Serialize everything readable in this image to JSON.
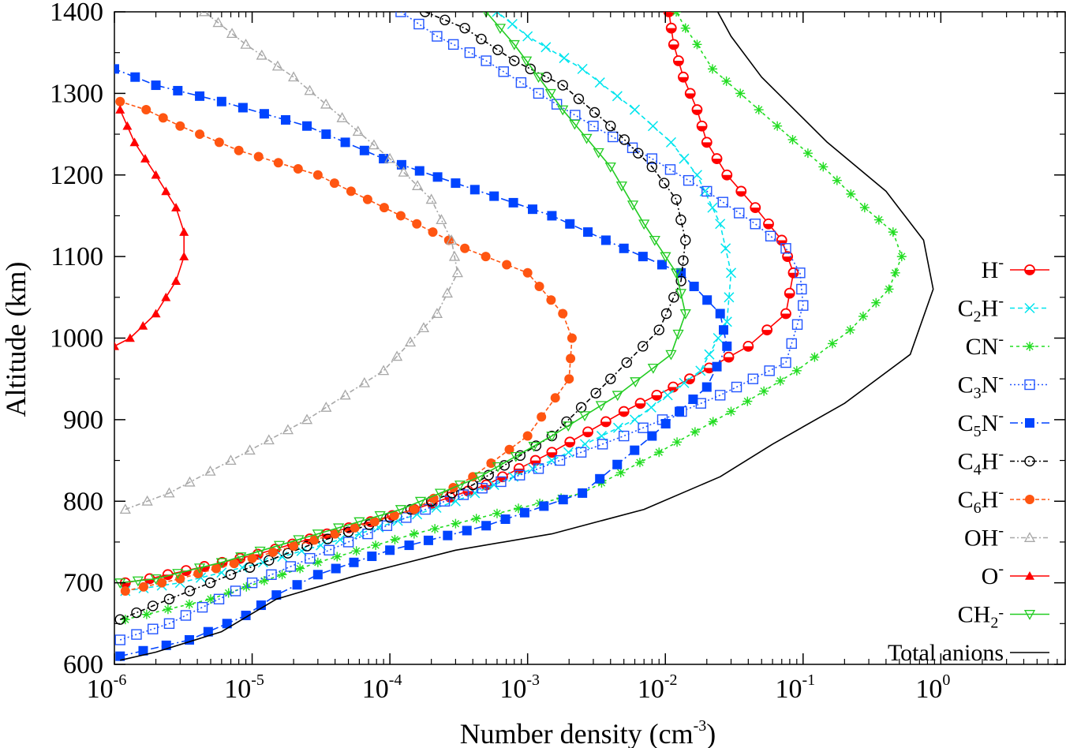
{
  "chart_data": {
    "type": "line",
    "title": "",
    "xlabel": "Number density (cm",
    "xlabel_sup": "-3",
    "xlabel_close": ")",
    "ylabel": "Altitude (km)",
    "xscale": "log",
    "xlim": [
      1e-06,
      8
    ],
    "ylim": [
      600,
      1400
    ],
    "grid": false,
    "legend_position": "right",
    "y_ticks": [
      600,
      700,
      800,
      900,
      1000,
      1100,
      1200,
      1300,
      1400
    ],
    "y_tick_labels": [
      "600",
      "700",
      "800",
      "900",
      "1000",
      "1100",
      "1200",
      "1300",
      "1400"
    ],
    "x_ticks": [
      {
        "value": 1e-06,
        "base": "10",
        "exp": "-6"
      },
      {
        "value": 1e-05,
        "base": "10",
        "exp": "-5"
      },
      {
        "value": 0.0001,
        "base": "10",
        "exp": "-4"
      },
      {
        "value": 0.001,
        "base": "10",
        "exp": "-3"
      },
      {
        "value": 0.01,
        "base": "10",
        "exp": "-2"
      },
      {
        "value": 0.1,
        "base": "10",
        "exp": "-1"
      },
      {
        "value": 1,
        "base": "10",
        "exp": "0"
      }
    ],
    "series": [
      {
        "name": "H",
        "sub": "",
        "sup": "-",
        "color": "#ff0000",
        "marker": "half-circle",
        "dash": "",
        "x": [
          1.2e-06,
          1.8e-06,
          4.5e-06,
          1.1e-05,
          3.5e-05,
          0.00015,
          0.0005,
          0.0015,
          0.005,
          0.015,
          0.04,
          0.075,
          0.085,
          0.07,
          0.045,
          0.028,
          0.02,
          0.017,
          0.0135,
          0.0115,
          0.0106
        ],
        "y": [
          700,
          705,
          720,
          735,
          760,
          790,
          820,
          860,
          910,
          950,
          990,
          1030,
          1080,
          1120,
          1160,
          1200,
          1240,
          1280,
          1320,
          1360,
          1400
        ]
      },
      {
        "name": "C",
        "sub": "2",
        "tail": "H",
        "sup": "-",
        "color": "#00e5ee",
        "marker": "x",
        "dash": "6,4",
        "x": [
          1.2e-06,
          3e-06,
          1.2e-05,
          6e-05,
          0.0003,
          0.0015,
          0.006,
          0.018,
          0.028,
          0.03,
          0.025,
          0.017,
          0.011,
          0.006,
          0.0025,
          0.001,
          0.0006
        ],
        "y": [
          690,
          700,
          725,
          760,
          800,
          850,
          900,
          960,
          1020,
          1080,
          1140,
          1200,
          1240,
          1280,
          1330,
          1370,
          1400
        ]
      },
      {
        "name": "CN",
        "sub": "",
        "sup": "-",
        "color": "#22dd22",
        "marker": "star",
        "dash": "4,4",
        "x": [
          1.2e-06,
          5e-06,
          3e-05,
          0.00015,
          0.0006,
          0.0025,
          0.009,
          0.03,
          0.09,
          0.22,
          0.42,
          0.52,
          0.45,
          0.28,
          0.14,
          0.065,
          0.035,
          0.022,
          0.017,
          0.014,
          0.012
        ],
        "y": [
          655,
          680,
          725,
          760,
          785,
          810,
          860,
          910,
          960,
          1010,
          1060,
          1100,
          1130,
          1160,
          1210,
          1260,
          1300,
          1330,
          1360,
          1380,
          1400
        ]
      },
      {
        "name": "C",
        "sub": "3",
        "tail": "N",
        "sup": "-",
        "color": "#2255ff",
        "marker": "open-square",
        "dash": "2,3",
        "x": [
          1.1e-06,
          2.5e-06,
          1e-05,
          5e-05,
          0.00025,
          0.0012,
          0.005,
          0.025,
          0.075,
          0.1,
          0.095,
          0.075,
          0.045,
          0.02,
          0.008,
          0.003,
          0.0012,
          0.0005,
          0.00022,
          0.00012
        ],
        "y": [
          630,
          650,
          700,
          750,
          800,
          840,
          880,
          930,
          970,
          1040,
          1080,
          1110,
          1140,
          1180,
          1220,
          1260,
          1300,
          1340,
          1370,
          1400
        ]
      },
      {
        "name": "C",
        "sub": "5",
        "tail": "N",
        "sup": "-",
        "color": "#0044ff",
        "marker": "filled-square",
        "dash": "10,4,2,4",
        "x": [
          1.1e-06,
          3.5e-06,
          9e-06,
          1.5e-05,
          3e-05,
          0.0001,
          0.0005,
          0.0025,
          0.008,
          0.02,
          0.028,
          0.025,
          0.013,
          0.005,
          0.0015,
          0.0003,
          9e-05,
          2.5e-05,
          6e-06,
          2e-06,
          1e-06
        ],
        "y": [
          610,
          630,
          660,
          685,
          710,
          740,
          770,
          810,
          880,
          940,
          990,
          1030,
          1080,
          1110,
          1150,
          1190,
          1220,
          1260,
          1290,
          1310,
          1330
        ]
      },
      {
        "name": "C",
        "sub": "4",
        "tail": "H",
        "sup": "-",
        "color": "#000000",
        "marker": "open-circle",
        "dash": "6,3,2,3",
        "x": [
          1.1e-06,
          2.5e-06,
          7e-06,
          2.5e-05,
          0.0001,
          0.0004,
          0.0015,
          0.004,
          0.009,
          0.013,
          0.014,
          0.012,
          0.008,
          0.004,
          0.0018,
          0.0008,
          0.00035,
          0.00018
        ],
        "y": [
          655,
          680,
          710,
          745,
          780,
          820,
          880,
          950,
          1010,
          1070,
          1120,
          1170,
          1210,
          1260,
          1310,
          1340,
          1380,
          1400
        ]
      },
      {
        "name": "C",
        "sub": "6",
        "tail": "H",
        "sup": "-",
        "color": "#ff5511",
        "marker": "filled-circle",
        "dash": "5,3",
        "x": [
          1.2e-06,
          3e-06,
          1e-05,
          4e-05,
          0.00015,
          0.0004,
          0.001,
          0.002,
          0.0021,
          0.0018,
          0.001,
          0.00035,
          0.00012,
          3e-05,
          8e-06,
          3e-06,
          1.7e-06,
          1.1e-06
        ],
        "y": [
          690,
          705,
          730,
          760,
          790,
          830,
          880,
          950,
          1000,
          1030,
          1080,
          1110,
          1150,
          1200,
          1230,
          1260,
          1280,
          1290
        ]
      },
      {
        "name": "OH",
        "sub": "",
        "sup": "-",
        "color": "#a8a8a8",
        "marker": "open-triangle",
        "dash": "6,3,2,3",
        "x": [
          1.2e-06,
          2.5e-06,
          7e-06,
          2.5e-05,
          9e-05,
          0.00022,
          0.00031,
          0.00028,
          0.0002,
          0.0001,
          4.5e-05,
          2e-05,
          9e-06,
          4.5e-06
        ],
        "y": [
          790,
          810,
          850,
          900,
          960,
          1030,
          1080,
          1120,
          1170,
          1220,
          1270,
          1320,
          1360,
          1400
        ]
      },
      {
        "name": "O",
        "sub": "",
        "sup": "-",
        "color": "#ff0000",
        "marker": "filled-triangle",
        "dash": "",
        "x": [
          1e-06,
          1.3e-06,
          2e-06,
          2.8e-06,
          3.2e-06,
          3.2e-06,
          2.8e-06,
          2e-06,
          1.4e-06,
          1.1e-06
        ],
        "y": [
          990,
          1000,
          1030,
          1070,
          1100,
          1130,
          1160,
          1200,
          1240,
          1280
        ]
      },
      {
        "name": "CH",
        "sub": "2",
        "tail": "",
        "sup": "-",
        "color": "#22cc22",
        "marker": "open-triangle-down",
        "dash": "",
        "x": [
          1.1e-06,
          2e-06,
          6e-06,
          3e-05,
          0.00012,
          0.00045,
          0.0015,
          0.0045,
          0.011,
          0.014,
          0.012,
          0.007,
          0.004,
          0.0018,
          0.0008,
          0.0005
        ],
        "y": [
          700,
          705,
          725,
          760,
          790,
          830,
          880,
          930,
          980,
          1030,
          1080,
          1140,
          1210,
          1280,
          1360,
          1400
        ]
      },
      {
        "name": "Total anions",
        "sub": "",
        "sup": "",
        "color": "#000000",
        "marker": "none",
        "dash": "",
        "x": [
          1.1e-06,
          2e-06,
          6e-06,
          1.5e-05,
          6e-05,
          0.0003,
          0.0015,
          0.007,
          0.025,
          0.06,
          0.2,
          0.6,
          0.88,
          0.75,
          0.4,
          0.15,
          0.05,
          0.03,
          0.024
        ],
        "y": [
          605,
          615,
          640,
          680,
          710,
          740,
          760,
          790,
          830,
          870,
          920,
          980,
          1060,
          1120,
          1180,
          1240,
          1320,
          1370,
          1400
        ]
      }
    ]
  }
}
